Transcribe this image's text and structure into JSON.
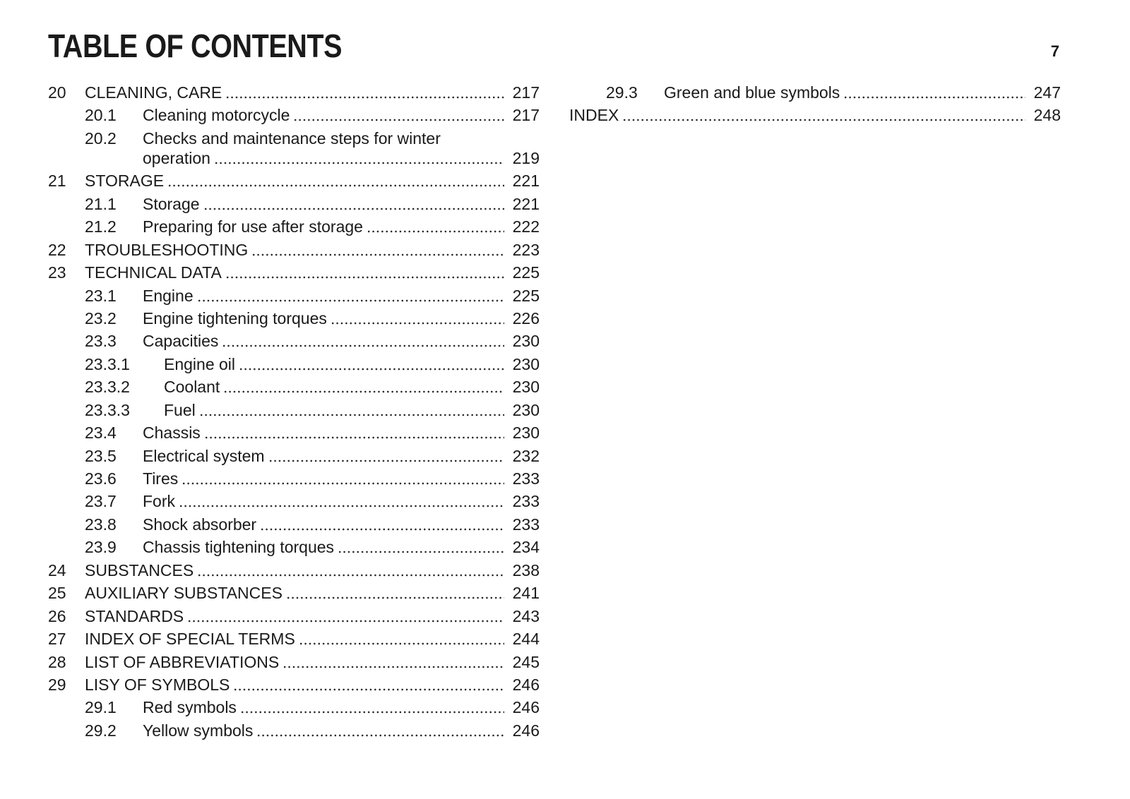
{
  "header": {
    "title": "TABLE OF CONTENTS",
    "page": "7"
  },
  "columns": [
    {
      "entries": [
        {
          "number": "20",
          "title": "CLEANING, CARE",
          "page": "217"
        },
        {
          "number": "20.1",
          "title": "Cleaning motorcycle",
          "page": "217"
        },
        {
          "number": "20.2",
          "title": "Checks and maintenance steps for winter operation",
          "page": "219"
        },
        {
          "number": "21",
          "title": "STORAGE",
          "page": "221"
        },
        {
          "number": "21.1",
          "title": "Storage",
          "page": "221"
        },
        {
          "number": "21.2",
          "title": "Preparing for use after storage",
          "page": "222"
        },
        {
          "number": "22",
          "title": "TROUBLESHOOTING",
          "page": "223"
        },
        {
          "number": "23",
          "title": "TECHNICAL DATA",
          "page": "225"
        },
        {
          "number": "23.1",
          "title": "Engine",
          "page": "225"
        },
        {
          "number": "23.2",
          "title": "Engine tightening torques",
          "page": "226"
        },
        {
          "number": "23.3",
          "title": "Capacities",
          "page": "230"
        },
        {
          "number": "23.3.1",
          "title": "Engine oil",
          "page": "230"
        },
        {
          "number": "23.3.2",
          "title": "Coolant",
          "page": "230"
        },
        {
          "number": "23.3.3",
          "title": "Fuel",
          "page": "230"
        },
        {
          "number": "23.4",
          "title": "Chassis",
          "page": "230"
        },
        {
          "number": "23.5",
          "title": "Electrical system",
          "page": "232"
        },
        {
          "number": "23.6",
          "title": "Tires",
          "page": "233"
        },
        {
          "number": "23.7",
          "title": "Fork",
          "page": "233"
        },
        {
          "number": "23.8",
          "title": "Shock absorber",
          "page": "233"
        },
        {
          "number": "23.9",
          "title": "Chassis tightening torques",
          "page": "234"
        },
        {
          "number": "24",
          "title": "SUBSTANCES",
          "page": "238"
        },
        {
          "number": "25",
          "title": "AUXILIARY SUBSTANCES",
          "page": "241"
        },
        {
          "number": "26",
          "title": "STANDARDS",
          "page": "243"
        },
        {
          "number": "27",
          "title": "INDEX OF SPECIAL TERMS",
          "page": "244"
        },
        {
          "number": "28",
          "title": "LIST OF ABBREVIATIONS",
          "page": "245"
        },
        {
          "number": "29",
          "title": "LISY OF SYMBOLS",
          "page": "246"
        },
        {
          "number": "29.1",
          "title": "Red symbols",
          "page": "246"
        },
        {
          "number": "29.2",
          "title": "Yellow symbols",
          "page": "246"
        }
      ]
    },
    {
      "entries": [
        {
          "number": "29.3",
          "title": "Green and blue symbols",
          "page": "247"
        },
        {
          "title": "INDEX",
          "page": "248"
        }
      ]
    }
  ]
}
